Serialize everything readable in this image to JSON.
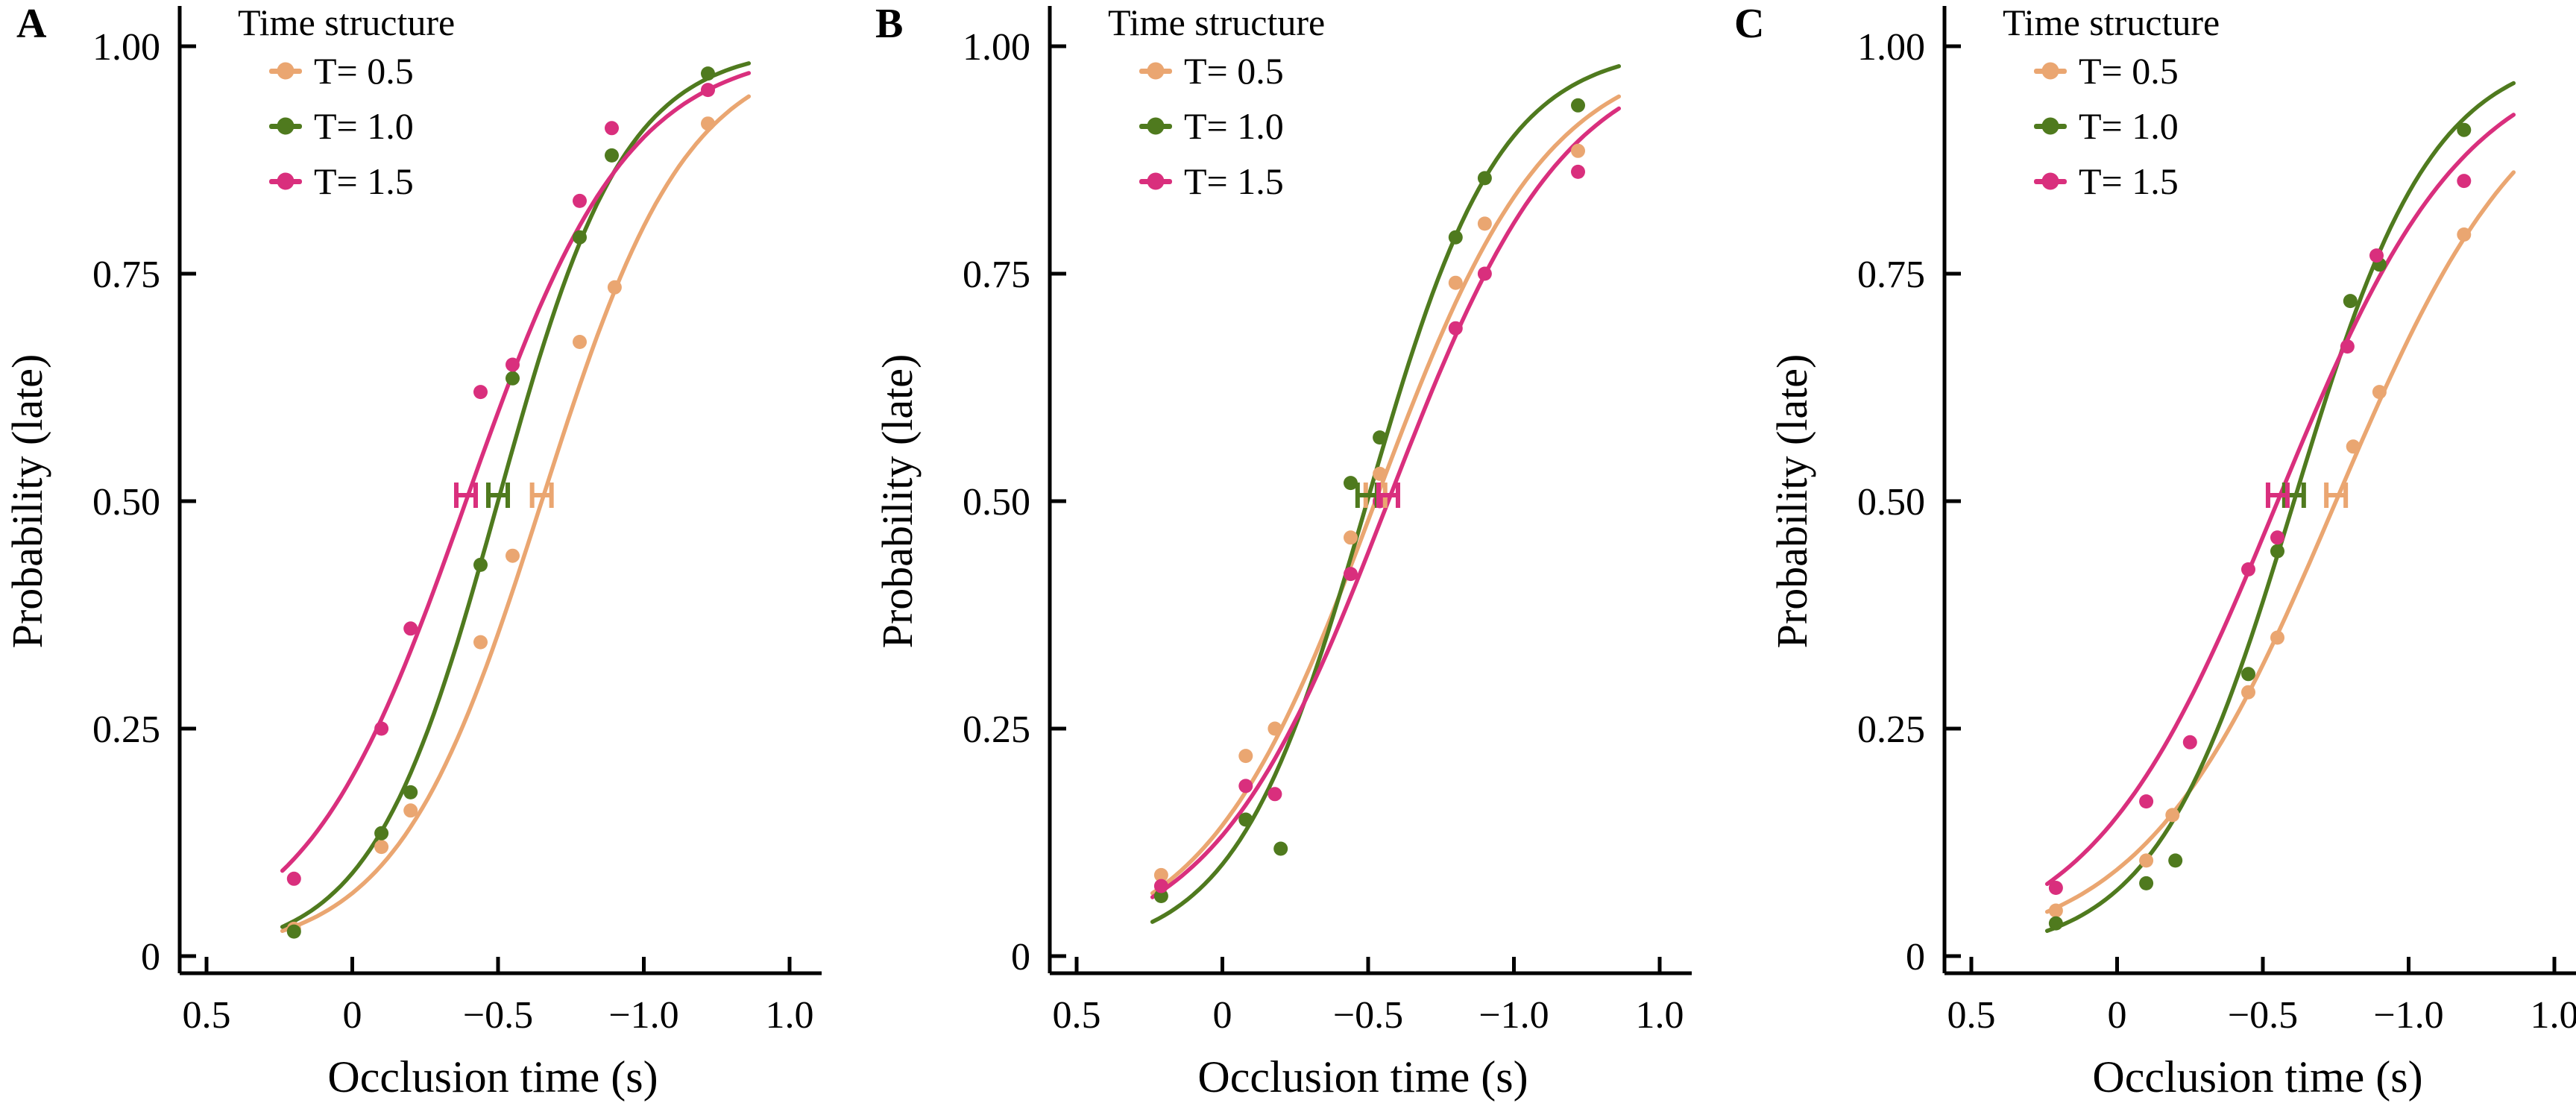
{
  "figure": {
    "background": "#ffffff",
    "text_color": "#000000",
    "series_colors": {
      "T05": "#EAA671",
      "T10": "#4F7A1E",
      "T15": "#D92F7D"
    }
  },
  "chart_data": [
    {
      "type": "scatter",
      "panel_label": "A",
      "xlabel": "Occlusion time (s)",
      "ylabel": "Probability (late)",
      "x_tick_labels": [
        "0.5",
        "0",
        "−0.5",
        "−1.0",
        "1.0"
      ],
      "y_tick_values": [
        0,
        0.25,
        0.5,
        0.75,
        1.0
      ],
      "y_tick_labels": [
        "0",
        "0.25",
        "0.50",
        "0.75",
        "1.00"
      ],
      "ylim": [
        0,
        1.0
      ],
      "grid": "off",
      "legend": {
        "title": "Time structure",
        "position": "top-left-inside",
        "entries": [
          {
            "label": "T= 0.5",
            "color": "#EAA671"
          },
          {
            "label": "T= 1.0",
            "color": "#4F7A1E"
          },
          {
            "label": "T= 1.5",
            "color": "#D92F7D"
          }
        ]
      },
      "series": [
        {
          "name": "T= 0.5",
          "color": "#EAA671",
          "points": [
            [
              0.2,
              0.03
            ],
            [
              -0.1,
              0.12
            ],
            [
              -0.2,
              0.16
            ],
            [
              -0.44,
              0.345
            ],
            [
              -0.55,
              0.44
            ],
            [
              -0.78,
              0.675
            ],
            [
              -0.9,
              0.735
            ],
            [
              -1.22,
              0.915
            ]
          ],
          "pse": -0.65,
          "pse_y": 0.5,
          "curve": {
            "m": -0.65,
            "k": 4.0
          }
        },
        {
          "name": "T= 1.0",
          "color": "#4F7A1E",
          "points": [
            [
              0.2,
              0.027
            ],
            [
              -0.1,
              0.135
            ],
            [
              -0.2,
              0.18
            ],
            [
              -0.44,
              0.43
            ],
            [
              -0.55,
              0.635
            ],
            [
              -0.78,
              0.79
            ],
            [
              -0.89,
              0.88
            ],
            [
              -1.22,
              0.97
            ]
          ],
          "pse": -0.5,
          "pse_y": 0.5,
          "curve": {
            "m": -0.5,
            "k": 4.6
          }
        },
        {
          "name": "T= 1.5",
          "color": "#D92F7D",
          "points": [
            [
              0.2,
              0.085
            ],
            [
              -0.1,
              0.25
            ],
            [
              -0.2,
              0.36
            ],
            [
              -0.44,
              0.62
            ],
            [
              -0.55,
              0.65
            ],
            [
              -0.78,
              0.83
            ],
            [
              -0.89,
              0.91
            ],
            [
              -1.22,
              0.952
            ]
          ],
          "pse": -0.39,
          "pse_y": 0.5,
          "curve": {
            "m": -0.39,
            "k": 3.6
          }
        }
      ]
    },
    {
      "type": "scatter",
      "panel_label": "B",
      "xlabel": "Occlusion time (s)",
      "ylabel": "Probability (late)",
      "x_tick_labels": [
        "0.5",
        "0",
        "−0.5",
        "−1.0",
        "1.0"
      ],
      "y_tick_values": [
        0,
        0.25,
        0.5,
        0.75,
        1.0
      ],
      "y_tick_labels": [
        "0",
        "0.25",
        "0.50",
        "0.75",
        "1.00"
      ],
      "ylim": [
        0,
        1.0
      ],
      "grid": "off",
      "legend": {
        "title": "Time structure",
        "position": "top-left-inside",
        "entries": [
          {
            "label": "T= 0.5",
            "color": "#EAA671"
          },
          {
            "label": "T= 1.0",
            "color": "#4F7A1E"
          },
          {
            "label": "T= 1.5",
            "color": "#D92F7D"
          }
        ]
      },
      "series": [
        {
          "name": "T= 0.5",
          "color": "#EAA671",
          "points": [
            [
              0.21,
              0.089
            ],
            [
              -0.08,
              0.22
            ],
            [
              -0.18,
              0.25
            ],
            [
              -0.44,
              0.46
            ],
            [
              -0.54,
              0.53
            ],
            [
              -0.8,
              0.74
            ],
            [
              -0.9,
              0.805
            ],
            [
              -1.22,
              0.885
            ]
          ],
          "pse": -0.525,
          "pse_y": 0.5,
          "curve": {
            "m": -0.525,
            "k": 3.4
          }
        },
        {
          "name": "T= 1.0",
          "color": "#4F7A1E",
          "points": [
            [
              0.21,
              0.066
            ],
            [
              -0.08,
              0.15
            ],
            [
              -0.2,
              0.118
            ],
            [
              -0.44,
              0.52
            ],
            [
              -0.54,
              0.57
            ],
            [
              -0.8,
              0.79
            ],
            [
              -0.9,
              0.855
            ],
            [
              -1.22,
              0.935
            ]
          ],
          "pse": -0.497,
          "pse_y": 0.5,
          "curve": {
            "m": -0.497,
            "k": 4.4
          }
        },
        {
          "name": "T= 1.5",
          "color": "#D92F7D",
          "points": [
            [
              0.21,
              0.077
            ],
            [
              -0.08,
              0.187
            ],
            [
              -0.18,
              0.178
            ],
            [
              -0.44,
              0.42
            ],
            [
              -0.54,
              0.5
            ],
            [
              -0.8,
              0.69
            ],
            [
              -0.9,
              0.75
            ],
            [
              -1.22,
              0.862
            ]
          ],
          "pse": -0.569,
          "pse_y": 0.5,
          "curve": {
            "m": -0.569,
            "k": 3.3
          }
        }
      ]
    },
    {
      "type": "scatter",
      "panel_label": "C",
      "xlabel": "Occlusion time (s)",
      "ylabel": "Probability (late)",
      "x_tick_labels": [
        "0.5",
        "0",
        "−0.5",
        "−1.0",
        "1.0"
      ],
      "y_tick_values": [
        0,
        0.25,
        0.5,
        0.75,
        1.0
      ],
      "y_tick_labels": [
        "0",
        "0.25",
        "0.50",
        "0.75",
        "1.00"
      ],
      "ylim": [
        0,
        1.0
      ],
      "grid": "off",
      "legend": {
        "title": "Time structure",
        "position": "top-left-inside",
        "entries": [
          {
            "label": "T= 0.5",
            "color": "#EAA671"
          },
          {
            "label": "T= 1.0",
            "color": "#4F7A1E"
          },
          {
            "label": "T= 1.5",
            "color": "#D92F7D"
          }
        ]
      },
      "series": [
        {
          "name": "T= 0.5",
          "color": "#EAA671",
          "points": [
            [
              0.21,
              0.05
            ],
            [
              -0.1,
              0.105
            ],
            [
              -0.19,
              0.155
            ],
            [
              -0.45,
              0.29
            ],
            [
              -0.55,
              0.35
            ],
            [
              -0.81,
              0.56
            ],
            [
              -0.9,
              0.62
            ],
            [
              -1.19,
              0.793
            ]
          ],
          "pse": -0.751,
          "pse_y": 0.5,
          "curve": {
            "m": -0.751,
            "k": 3.0
          }
        },
        {
          "name": "T= 1.0",
          "color": "#4F7A1E",
          "points": [
            [
              0.21,
              0.036
            ],
            [
              -0.1,
              0.08
            ],
            [
              -0.2,
              0.105
            ],
            [
              -0.45,
              0.31
            ],
            [
              -0.55,
              0.445
            ],
            [
              -0.8,
              0.72
            ],
            [
              -0.9,
              0.76
            ],
            [
              -1.19,
              0.908
            ]
          ],
          "pse": -0.607,
          "pse_y": 0.5,
          "curve": {
            "m": -0.607,
            "k": 4.2
          }
        },
        {
          "name": "T= 1.5",
          "color": "#D92F7D",
          "points": [
            [
              0.21,
              0.075
            ],
            [
              -0.1,
              0.17
            ],
            [
              -0.25,
              0.235
            ],
            [
              -0.45,
              0.425
            ],
            [
              -0.55,
              0.46
            ],
            [
              -0.79,
              0.67
            ],
            [
              -0.89,
              0.77
            ],
            [
              -1.19,
              0.852
            ]
          ],
          "pse": -0.551,
          "pse_y": 0.5,
          "curve": {
            "m": -0.551,
            "k": 3.1
          }
        }
      ]
    }
  ]
}
